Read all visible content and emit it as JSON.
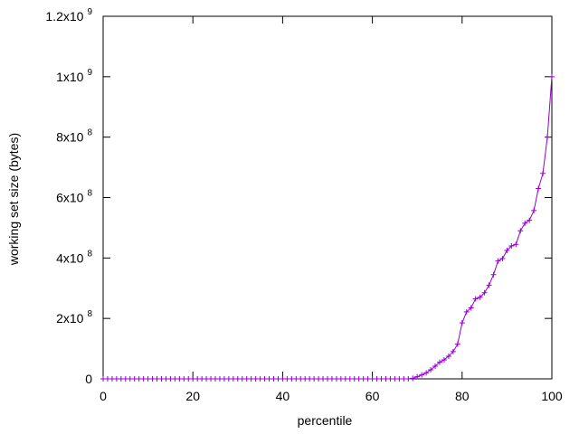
{
  "chart_data": {
    "type": "line",
    "xlabel": "percentile",
    "ylabel": "working set size (bytes)",
    "xlim": [
      0,
      100
    ],
    "ylim": [
      0,
      1200000000
    ],
    "xticks": [
      {
        "value": 0,
        "label": "0"
      },
      {
        "value": 20,
        "label": "20"
      },
      {
        "value": 40,
        "label": "40"
      },
      {
        "value": 60,
        "label": "60"
      },
      {
        "value": 80,
        "label": "80"
      },
      {
        "value": 100,
        "label": "100"
      }
    ],
    "yticks": [
      {
        "value": 0,
        "base": "0",
        "exp": ""
      },
      {
        "value": 200000000,
        "base": "2x10",
        "exp": "8"
      },
      {
        "value": 400000000,
        "base": "4x10",
        "exp": "8"
      },
      {
        "value": 600000000,
        "base": "6x10",
        "exp": "8"
      },
      {
        "value": 800000000,
        "base": "8x10",
        "exp": "8"
      },
      {
        "value": 1000000000,
        "base": "1x10",
        "exp": "9"
      },
      {
        "value": 1200000000,
        "base": "1.2x10",
        "exp": "9"
      }
    ],
    "marker": "plus",
    "grid": false,
    "series": [
      {
        "color": "#9400d3",
        "x": [
          0,
          1,
          2,
          3,
          4,
          5,
          6,
          7,
          8,
          9,
          10,
          11,
          12,
          13,
          14,
          15,
          16,
          17,
          18,
          19,
          20,
          21,
          22,
          23,
          24,
          25,
          26,
          27,
          28,
          29,
          30,
          31,
          32,
          33,
          34,
          35,
          36,
          37,
          38,
          39,
          40,
          41,
          42,
          43,
          44,
          45,
          46,
          47,
          48,
          49,
          50,
          51,
          52,
          53,
          54,
          55,
          56,
          57,
          58,
          59,
          60,
          61,
          62,
          63,
          64,
          65,
          66,
          67,
          68,
          69,
          70,
          71,
          72,
          73,
          74,
          75,
          76,
          77,
          78,
          79,
          80,
          81,
          82,
          83,
          84,
          85,
          86,
          87,
          88,
          89,
          90,
          91,
          92,
          93,
          94,
          95,
          96,
          97,
          98,
          99,
          100
        ],
        "values": [
          0,
          0,
          0,
          0,
          0,
          0,
          0,
          0,
          0,
          0,
          0,
          0,
          0,
          0,
          0,
          0,
          0,
          0,
          0,
          0,
          0,
          0,
          0,
          0,
          0,
          0,
          0,
          0,
          0,
          0,
          0,
          0,
          0,
          0,
          0,
          0,
          0,
          0,
          0,
          0,
          0,
          0,
          0,
          0,
          0,
          0,
          0,
          0,
          0,
          0,
          0,
          0,
          0,
          0,
          0,
          0,
          0,
          0,
          0,
          0,
          0,
          0,
          0,
          0,
          0,
          0,
          0,
          0,
          0,
          2000000,
          7000000,
          13000000,
          20000000,
          30000000,
          42000000,
          55000000,
          63000000,
          75000000,
          90000000,
          115000000,
          185000000,
          222000000,
          235000000,
          265000000,
          270000000,
          285000000,
          310000000,
          345000000,
          390000000,
          398000000,
          425000000,
          440000000,
          445000000,
          490000000,
          515000000,
          525000000,
          557000000,
          630000000,
          680000000,
          800000000,
          1000000000
        ]
      }
    ]
  }
}
